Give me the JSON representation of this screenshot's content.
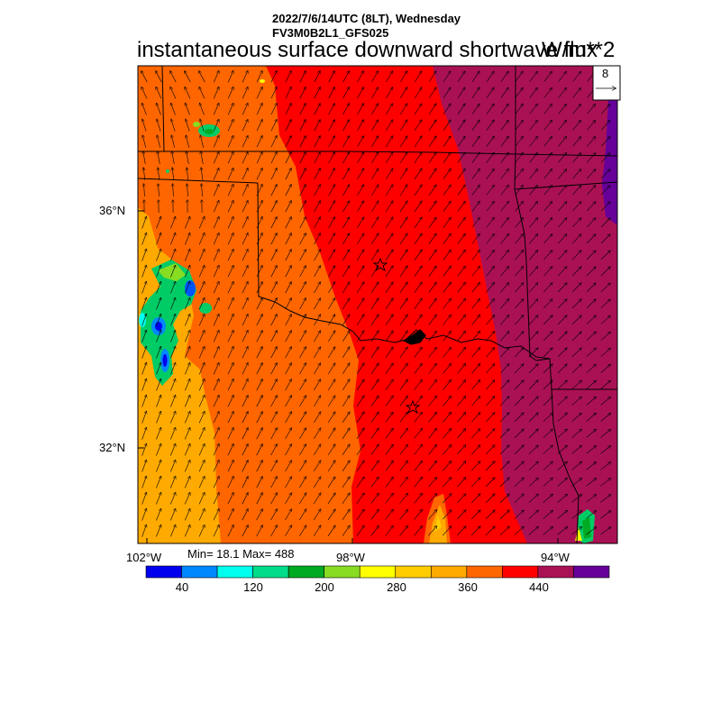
{
  "header": {
    "datetime": "2022/7/6/14UTC (8LT), Wednesday",
    "model": "FV3M0B2L1_GFS025",
    "field_title": "instantaneous surface downward shortwave flux",
    "units": "W/m**2"
  },
  "vector_legend": {
    "reference_value": "8"
  },
  "axes": {
    "lat_labels": [
      "36°N",
      "32°N"
    ],
    "lon_labels": [
      "102°W",
      "98°W",
      "94°W"
    ]
  },
  "stats": "Min= 18.1 Max= 488",
  "colorbar": {
    "colors": [
      "#0000ee",
      "#0088ff",
      "#00ffee",
      "#00dd88",
      "#00aa22",
      "#88dd22",
      "#ffff00",
      "#ffcc00",
      "#ffaa00",
      "#ff6600",
      "#ff0000",
      "#aa1155",
      "#660099"
    ],
    "tick_labels": [
      "40",
      "120",
      "200",
      "280",
      "360",
      "440"
    ]
  },
  "map_regions": {
    "light_orange": "#ffaa00",
    "orange": "#ff6600",
    "red": "#ff0000",
    "maroon": "#aa1155",
    "purple": "#660099",
    "green": "#00cc66",
    "blue": "#0055ff"
  }
}
